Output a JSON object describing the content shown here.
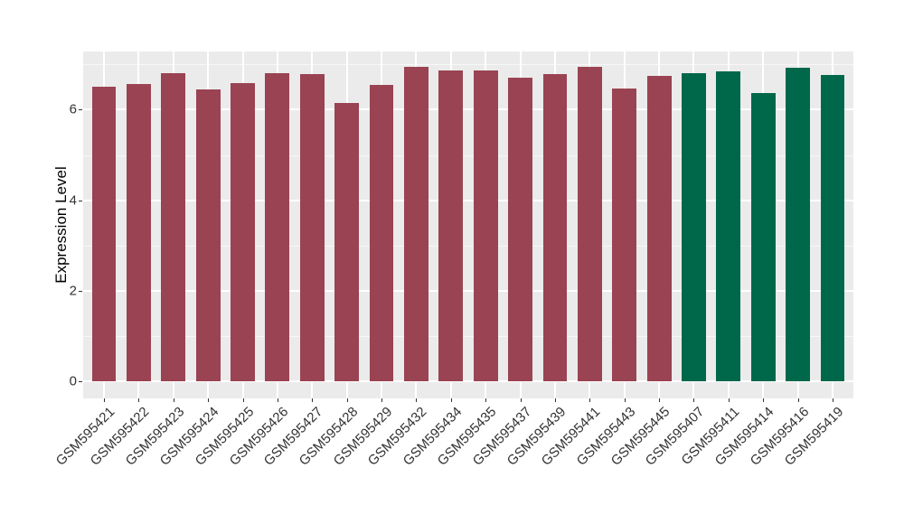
{
  "figure": {
    "background": "#FFFFFF",
    "plot_background": "#EBEBEB",
    "gridline_color": "#FFFFFF",
    "axis_text_color": "#333333"
  },
  "chart_data": {
    "type": "bar",
    "title": "",
    "xlabel": "",
    "ylabel": "Expression Level",
    "ylim": [
      -0.35,
      7.29
    ],
    "yticks": [
      0,
      2,
      4,
      6
    ],
    "ytick_labels": [
      "0",
      "2",
      "4",
      "6"
    ],
    "grid": "on",
    "legend_position": "none",
    "categories": [
      "GSM595421",
      "GSM595422",
      "GSM595423",
      "GSM595424",
      "GSM595425",
      "GSM595426",
      "GSM595427",
      "GSM595428",
      "GSM595429",
      "GSM595432",
      "GSM595434",
      "GSM595435",
      "GSM595437",
      "GSM595439",
      "GSM595441",
      "GSM595443",
      "GSM595445",
      "GSM595407",
      "GSM595411",
      "GSM595414",
      "GSM595416",
      "GSM595419"
    ],
    "values": [
      6.5,
      6.56,
      6.8,
      6.45,
      6.58,
      6.8,
      6.78,
      6.14,
      6.54,
      6.94,
      6.86,
      6.86,
      6.71,
      6.79,
      6.94,
      6.46,
      6.74,
      6.81,
      6.85,
      6.36,
      6.92,
      6.76
    ],
    "bar_colors": [
      "#9A4352",
      "#9A4352",
      "#9A4352",
      "#9A4352",
      "#9A4352",
      "#9A4352",
      "#9A4352",
      "#9A4352",
      "#9A4352",
      "#9A4352",
      "#9A4352",
      "#9A4352",
      "#9A4352",
      "#9A4352",
      "#9A4352",
      "#9A4352",
      "#9A4352",
      "#00684A",
      "#00684A",
      "#00684A",
      "#00684A",
      "#00684A"
    ],
    "group_colors": {
      "group1": "#9A4352",
      "group2": "#00684A"
    }
  }
}
